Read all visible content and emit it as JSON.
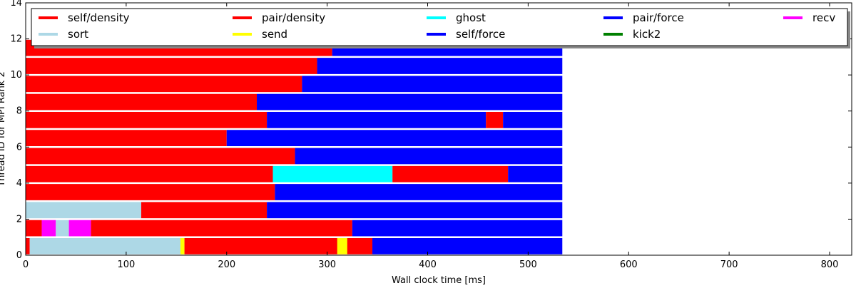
{
  "chart_data": {
    "type": "timeline",
    "xlabel": "Wall clock time [ms]",
    "ylabel": "Thread ID for MPI Rank 2",
    "xlim": [
      0,
      822
    ],
    "ylim": [
      0,
      14
    ],
    "x_ticks": [
      "0",
      "100",
      "200",
      "300",
      "400",
      "500",
      "600",
      "700",
      "800"
    ],
    "y_ticks": [
      "0",
      "2",
      "4",
      "6",
      "8",
      "10",
      "12",
      "14"
    ],
    "legend_placement": "top, inside, 5 columns",
    "legend": [
      {
        "label": "self/density",
        "color": "#ff0000"
      },
      {
        "label": "sort",
        "color": "#add8e6"
      },
      {
        "label": "pair/density",
        "color": "#ff0000"
      },
      {
        "label": "send",
        "color": "#ffff00"
      },
      {
        "label": "ghost",
        "color": "#00ffff"
      },
      {
        "label": "self/force",
        "color": "#0000ff"
      },
      {
        "label": "pair/force",
        "color": "#0000ff"
      },
      {
        "label": "kick2",
        "color": "#008000"
      },
      {
        "label": "recv",
        "color": "#ff00ff"
      }
    ],
    "lanes": [
      {
        "thread": 0,
        "segments": [
          {
            "task": "pair/density",
            "start": 0,
            "end": 4
          },
          {
            "task": "sort",
            "start": 4,
            "end": 156
          },
          {
            "task": "send",
            "start": 154,
            "end": 158
          },
          {
            "task": "pair/density",
            "start": 158,
            "end": 345
          },
          {
            "task": "send",
            "start": 310,
            "end": 320
          },
          {
            "task": "pair/force",
            "start": 345,
            "end": 534
          }
        ]
      },
      {
        "thread": 1,
        "segments": [
          {
            "task": "pair/density",
            "start": 0,
            "end": 16
          },
          {
            "task": "recv",
            "start": 16,
            "end": 30
          },
          {
            "task": "sort",
            "start": 30,
            "end": 43
          },
          {
            "task": "recv",
            "start": 43,
            "end": 65
          },
          {
            "task": "pair/density",
            "start": 65,
            "end": 325
          },
          {
            "task": "pair/force",
            "start": 325,
            "end": 534
          }
        ]
      },
      {
        "thread": 2,
        "segments": [
          {
            "task": "sort",
            "start": 0,
            "end": 115
          },
          {
            "task": "pair/density",
            "start": 115,
            "end": 240
          },
          {
            "task": "pair/force",
            "start": 240,
            "end": 534
          }
        ]
      },
      {
        "thread": 3,
        "segments": [
          {
            "task": "pair/density",
            "start": 0,
            "end": 248
          },
          {
            "task": "pair/force",
            "start": 248,
            "end": 534
          }
        ]
      },
      {
        "thread": 4,
        "segments": [
          {
            "task": "pair/density",
            "start": 0,
            "end": 246
          },
          {
            "task": "ghost",
            "start": 246,
            "end": 365
          },
          {
            "task": "pair/density",
            "start": 365,
            "end": 480
          },
          {
            "task": "pair/force",
            "start": 480,
            "end": 534
          }
        ]
      },
      {
        "thread": 5,
        "segments": [
          {
            "task": "pair/density",
            "start": 0,
            "end": 268
          },
          {
            "task": "pair/force",
            "start": 268,
            "end": 534
          }
        ]
      },
      {
        "thread": 6,
        "segments": [
          {
            "task": "pair/density",
            "start": 0,
            "end": 200
          },
          {
            "task": "pair/force",
            "start": 200,
            "end": 534
          }
        ]
      },
      {
        "thread": 7,
        "segments": [
          {
            "task": "pair/density",
            "start": 0,
            "end": 240
          },
          {
            "task": "pair/force",
            "start": 240,
            "end": 458
          },
          {
            "task": "pair/density",
            "start": 458,
            "end": 475
          },
          {
            "task": "pair/force",
            "start": 475,
            "end": 534
          }
        ]
      },
      {
        "thread": 8,
        "segments": [
          {
            "task": "pair/density",
            "start": 0,
            "end": 230
          },
          {
            "task": "pair/force",
            "start": 230,
            "end": 534
          }
        ]
      },
      {
        "thread": 9,
        "segments": [
          {
            "task": "pair/density",
            "start": 0,
            "end": 275
          },
          {
            "task": "pair/force",
            "start": 275,
            "end": 534
          }
        ]
      },
      {
        "thread": 10,
        "segments": [
          {
            "task": "pair/density",
            "start": 0,
            "end": 290
          },
          {
            "task": "pair/force",
            "start": 290,
            "end": 534
          }
        ]
      },
      {
        "thread": 11,
        "segments": [
          {
            "task": "pair/density",
            "start": 0,
            "end": 305
          },
          {
            "task": "pair/force",
            "start": 305,
            "end": 534
          }
        ]
      }
    ]
  }
}
